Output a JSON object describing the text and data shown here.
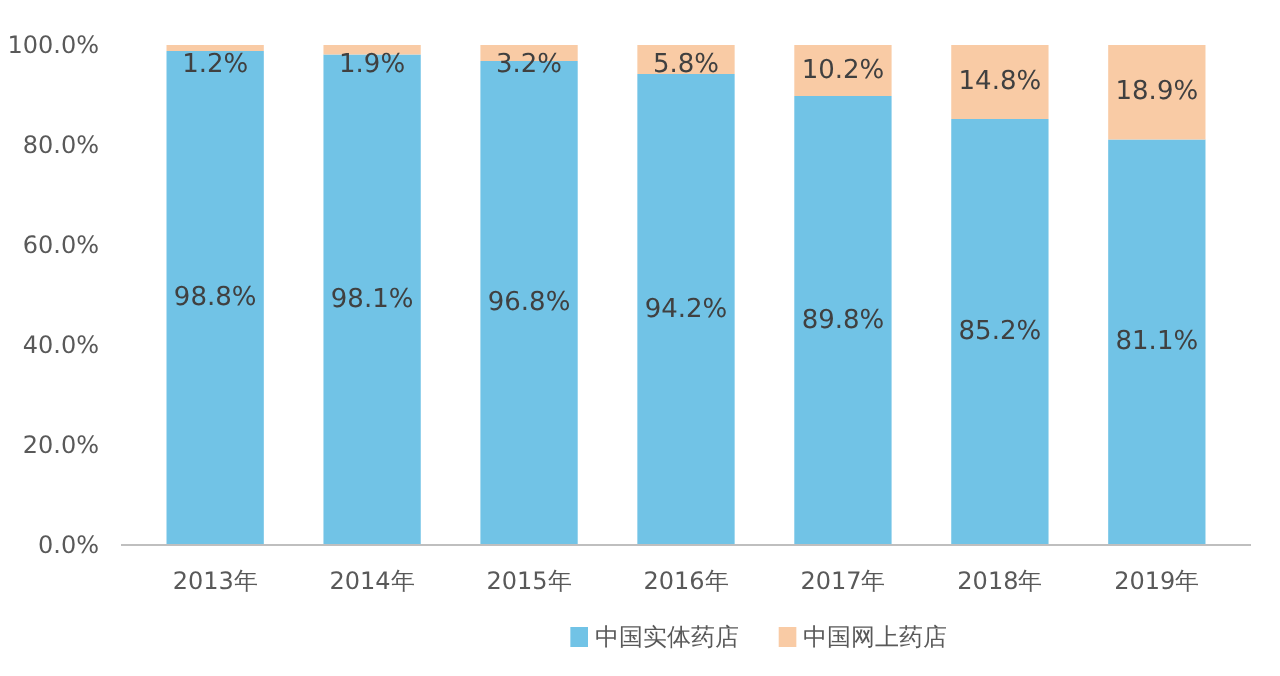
{
  "chart_data": {
    "type": "bar",
    "stacked": true,
    "categories": [
      "2013年",
      "2014年",
      "2015年",
      "2016年",
      "2017年",
      "2018年",
      "2019年"
    ],
    "series": [
      {
        "name": "中国实体药店",
        "color": "#71c3e6",
        "values": [
          98.8,
          98.1,
          96.8,
          94.2,
          89.8,
          85.2,
          81.1
        ],
        "value_labels": [
          "98.8%",
          "98.1%",
          "96.8%",
          "94.2%",
          "89.8%",
          "85.2%",
          "81.1%"
        ]
      },
      {
        "name": "中国网上药店",
        "color": "#f9cba5",
        "values": [
          1.2,
          1.9,
          3.2,
          5.8,
          10.2,
          14.8,
          18.9
        ],
        "value_labels": [
          "1.2%",
          "1.9%",
          "3.2%",
          "5.8%",
          "10.2%",
          "14.8%",
          "18.9%"
        ]
      }
    ],
    "ylim": [
      0,
      100
    ],
    "yticks": [
      {
        "value": 0,
        "label": "0.0%"
      },
      {
        "value": 20,
        "label": "20.0%"
      },
      {
        "value": 40,
        "label": "40.0%"
      },
      {
        "value": 60,
        "label": "60.0%"
      },
      {
        "value": 80,
        "label": "80.0%"
      },
      {
        "value": 100,
        "label": "100.0%"
      }
    ],
    "grid": false,
    "legend": "bottom"
  }
}
